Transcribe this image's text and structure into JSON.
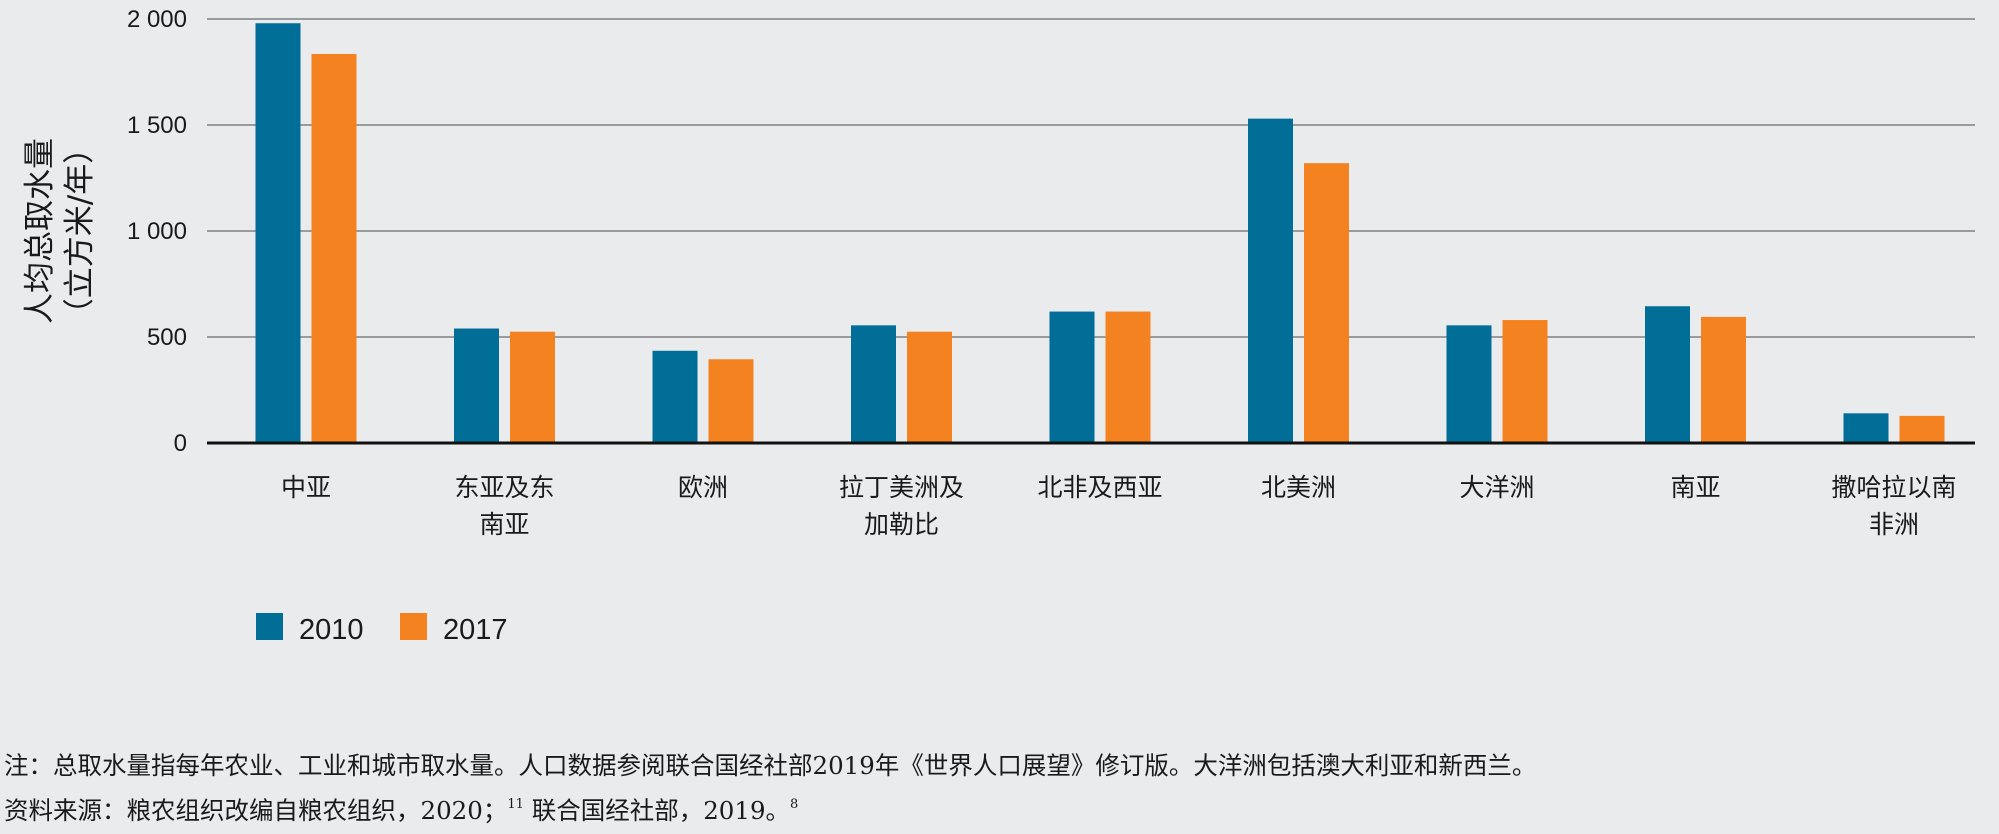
{
  "chart_data": {
    "type": "bar",
    "ylabel_line1": "人均总取水量",
    "ylabel_line2": "（立方米/年）",
    "ylim": [
      0,
      2000
    ],
    "yticks": [
      0,
      500,
      1000,
      1500,
      2000
    ],
    "ytick_labels": [
      "0",
      "500",
      "1 000",
      "1 500",
      "2 000"
    ],
    "grid": true,
    "legend_position": "bottom-left",
    "categories": [
      [
        "中亚"
      ],
      [
        "东亚及东",
        "南亚"
      ],
      [
        "欧洲"
      ],
      [
        "拉丁美洲及",
        "加勒比"
      ],
      [
        "北非及西亚"
      ],
      [
        "北美洲"
      ],
      [
        "大洋洲"
      ],
      [
        "南亚"
      ],
      [
        "撒哈拉以南",
        "非洲"
      ]
    ],
    "series": [
      {
        "name": "2010",
        "color": "#006e96",
        "values": [
          1980,
          540,
          435,
          555,
          620,
          1530,
          555,
          645,
          140
        ]
      },
      {
        "name": "2017",
        "color": "#f58220",
        "values": [
          1835,
          525,
          395,
          525,
          620,
          1320,
          580,
          595,
          128
        ]
      }
    ]
  },
  "notes": {
    "line1": "注：总取水量指每年农业、工业和城市取水量。人口数据参阅联合国经社部2019年《世界人口展望》修订版。大洋洲包括澳大利亚和新西兰。",
    "line2_a": "资料来源：粮农组织改编自粮农组织，2020；",
    "line2_sup1": "11",
    "line2_b": " 联合国经社部，2019。",
    "line2_sup2": "8"
  }
}
